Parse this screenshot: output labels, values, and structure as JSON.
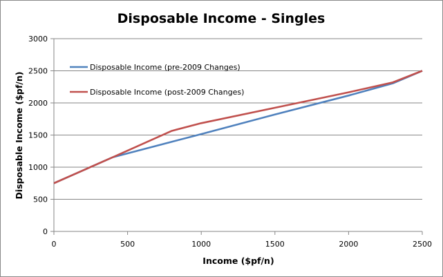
{
  "chart_data": {
    "type": "line",
    "title": "Disposable Income - Singles",
    "xlabel": "Income ($pf/n)",
    "ylabel": "Disposable Income ($pf/n)",
    "xlim": [
      0,
      2500
    ],
    "ylim": [
      0,
      3000
    ],
    "xticks": [
      0,
      500,
      1000,
      1500,
      2000,
      2500
    ],
    "yticks": [
      0,
      500,
      1000,
      1500,
      2000,
      2500,
      3000
    ],
    "grid": "horizontal",
    "legend_position": "top-left inside",
    "x": [
      0,
      400,
      800,
      1000,
      1500,
      2000,
      2300,
      2500
    ],
    "series": [
      {
        "name": "Disposable Income (pre-2009 Changes)",
        "color": "#4f81bd",
        "values": [
          750,
          1155,
          1395,
          1515,
          1820,
          2115,
          2305,
          2500
        ]
      },
      {
        "name": "Disposable Income (post-2009 Changes)",
        "color": "#c0504d",
        "values": [
          750,
          1155,
          1565,
          1685,
          1925,
          2165,
          2320,
          2500
        ]
      }
    ]
  }
}
